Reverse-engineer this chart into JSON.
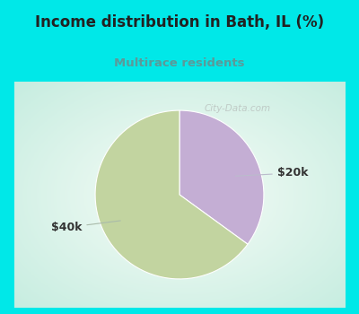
{
  "title": "Income distribution in Bath, IL (%)",
  "subtitle": "Multirace residents",
  "subtitle_color": "#5b9a9a",
  "title_color": "#222222",
  "slices": [
    0.65,
    0.35
  ],
  "slice_labels": [
    "$40k",
    "$20k"
  ],
  "colors": [
    "#c2d4a0",
    "#c4aed4"
  ],
  "bg_color": "#00e8e8",
  "chart_bg_center": "#f5faf5",
  "chart_bg_edge": "#c8ede0",
  "start_angle": 90,
  "watermark": "City-Data.com",
  "label_fontsize": 9,
  "title_fontsize": 12,
  "subtitle_fontsize": 9.5
}
